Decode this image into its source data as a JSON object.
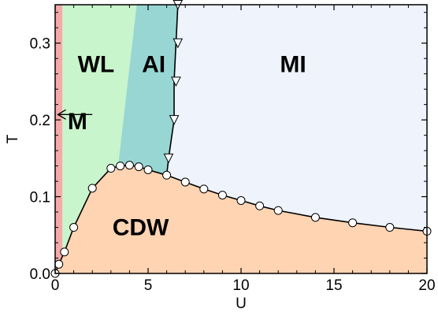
{
  "chart_data": {
    "type": "phase-diagram",
    "xlabel": "U",
    "ylabel": "T",
    "xlim": [
      0,
      20
    ],
    "ylim": [
      0,
      0.35
    ],
    "xticks": [
      0,
      5,
      10,
      15,
      20
    ],
    "yticks": [
      0,
      0.1,
      0.2,
      0.3
    ],
    "xtick_labels": [
      "0",
      "5",
      "10",
      "15",
      "20"
    ],
    "ytick_labels": [
      "0.0",
      "0.1",
      "0.2",
      "0.3"
    ],
    "grid": false,
    "regions": [
      {
        "label": "M",
        "color": "#f7a9a9",
        "label_at": [
          1.2,
          0.188
        ],
        "polygon": [
          [
            0,
            0
          ],
          [
            0.4,
            0
          ],
          [
            0.4,
            0.35
          ],
          [
            0,
            0.35
          ]
        ]
      },
      {
        "label": "WL",
        "color": "#c9f5cc",
        "label_at": [
          2.2,
          0.262
        ],
        "polygon": [
          [
            0.4,
            0
          ],
          [
            0.4,
            0.35
          ],
          [
            4.4,
            0.35
          ],
          [
            3.4,
            0.14
          ],
          [
            3,
            0.137
          ],
          [
            2,
            0.111
          ],
          [
            1,
            0.06
          ],
          [
            0.5,
            0.028
          ],
          [
            0.2,
            0.012
          ],
          [
            0.05,
            0.002
          ]
        ]
      },
      {
        "label": "AI",
        "color": "#97d6d3",
        "label_at": [
          5.3,
          0.262
        ],
        "polygon": [
          [
            4.4,
            0.35
          ],
          [
            6.6,
            0.35
          ],
          [
            6.5,
            0.3
          ],
          [
            6.4,
            0.25
          ],
          [
            6.4,
            0.2
          ],
          [
            6.1,
            0.15
          ],
          [
            6,
            0.128
          ],
          [
            5,
            0.135
          ],
          [
            4.5,
            0.138
          ],
          [
            4,
            0.14
          ],
          [
            3.4,
            0.14
          ]
        ]
      },
      {
        "label": "MI",
        "color": "#eef3fc",
        "label_at": [
          12.8,
          0.262
        ],
        "polygon": [
          [
            6.6,
            0.35
          ],
          [
            20,
            0.35
          ],
          [
            20,
            0.055
          ],
          [
            18,
            0.06
          ],
          [
            16,
            0.066
          ],
          [
            14,
            0.073
          ],
          [
            12,
            0.082
          ],
          [
            11,
            0.088
          ],
          [
            10,
            0.095
          ],
          [
            9,
            0.102
          ],
          [
            8,
            0.11
          ],
          [
            7,
            0.119
          ],
          [
            6,
            0.128
          ],
          [
            6.1,
            0.15
          ],
          [
            6.4,
            0.2
          ],
          [
            6.4,
            0.25
          ],
          [
            6.5,
            0.3
          ]
        ]
      },
      {
        "label": "CDW",
        "color": "#ffd4b3",
        "label_at": [
          4.6,
          0.05
        ],
        "polygon": [
          [
            0.05,
            0
          ],
          [
            20,
            0
          ],
          [
            20,
            0.055
          ],
          [
            18,
            0.06
          ],
          [
            16,
            0.066
          ],
          [
            14,
            0.073
          ],
          [
            12,
            0.082
          ],
          [
            11,
            0.088
          ],
          [
            10,
            0.095
          ],
          [
            9,
            0.102
          ],
          [
            8,
            0.11
          ],
          [
            7,
            0.119
          ],
          [
            6,
            0.128
          ],
          [
            5,
            0.135
          ],
          [
            4.5,
            0.138
          ],
          [
            4,
            0.14
          ],
          [
            3.4,
            0.14
          ],
          [
            3,
            0.137
          ],
          [
            2,
            0.111
          ],
          [
            1,
            0.06
          ],
          [
            0.5,
            0.028
          ],
          [
            0.2,
            0.012
          ],
          [
            0.05,
            0.002
          ]
        ]
      }
    ],
    "series": [
      {
        "marker": "circle",
        "x": [
          0,
          0.2,
          0.5,
          1,
          2,
          3,
          3.5,
          4,
          4.5,
          5,
          6,
          7,
          8,
          9,
          10,
          11,
          12,
          14,
          16,
          18,
          20
        ],
        "y": [
          0.0,
          0.012,
          0.028,
          0.06,
          0.111,
          0.137,
          0.14,
          0.141,
          0.139,
          0.135,
          0.128,
          0.119,
          0.11,
          0.102,
          0.095,
          0.088,
          0.082,
          0.073,
          0.066,
          0.06,
          0.055
        ]
      },
      {
        "marker": "triangle-down",
        "x": [
          6.6,
          6.6,
          6.5,
          6.4,
          6.1
        ],
        "y": [
          0.35,
          0.3,
          0.25,
          0.2,
          0.15
        ],
        "line_x": [
          6.6,
          6.5,
          6.4,
          6.4,
          6.1,
          6.0
        ],
        "line_y": [
          0.35,
          0.3,
          0.25,
          0.2,
          0.15,
          0.128
        ]
      }
    ],
    "annotations": [
      {
        "type": "arrow",
        "from": [
          2.0,
          0.207
        ],
        "to": [
          0.15,
          0.207
        ]
      }
    ]
  }
}
